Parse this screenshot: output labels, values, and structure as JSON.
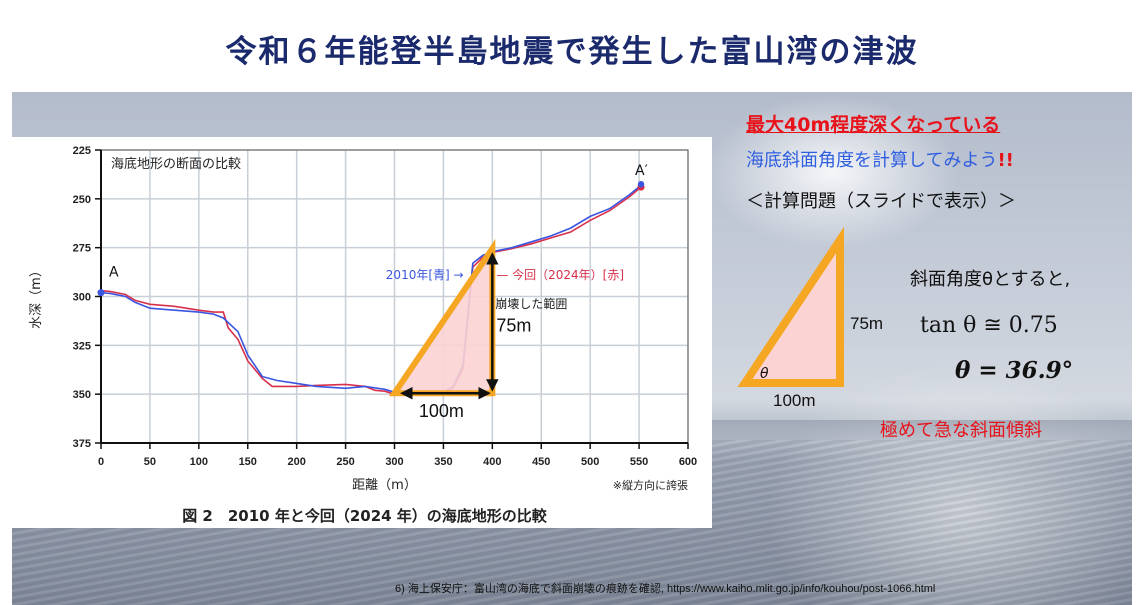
{
  "slide": {
    "title": "令和６年能登半島地震で発生した富山湾の津波",
    "citation": "6) 海上保安庁：富山湾の海底で斜面崩壊の痕跡を確認, https://www.kaiho.mlit.go.jp/info/kouhou/post-1066.html"
  },
  "figure": {
    "caption": "図 2　2010 年と今回（2024 年）の海底地形の比較",
    "inner_title": "海底地形の断面の比較",
    "exaggeration_note": "※縦方向に誇張",
    "point_a": "A",
    "point_a_prime": "A′",
    "legend_2010": "2010年[青] →",
    "legend_2024": "— 今回（2024年）[赤]",
    "collapse_label": "崩壊した範囲",
    "height_label": "75m",
    "width_label": "100m"
  },
  "right_panel": {
    "headline": "最大40m程度深くなっている",
    "prompt": "海底斜面角度を計算してみよう",
    "prompt_marks": "!!",
    "calc_problem": "＜計算問題（スライドで表示）＞",
    "slope_intro": "斜面角度θとすると,",
    "tan_equation": "tan θ ≅ 0.75",
    "theta_result": "θ = 36.9°",
    "conclusion": "極めて急な斜面傾斜",
    "triangle_height": "75m",
    "triangle_base": "100m",
    "triangle_angle": "θ"
  },
  "colors": {
    "title": "#1a2a6c",
    "series_2010": "#3a55e0",
    "series_2024": "#d8304a",
    "triangle_stroke": "#f5a623",
    "triangle_fill": "#fbd3d3",
    "highlight_red": "#e8121a",
    "prompt_blue": "#2f5fe0"
  },
  "chart_data": {
    "type": "line",
    "title": "海底地形の断面の比較",
    "xlabel": "距離（m）",
    "ylabel": "水深（m）",
    "xlim": [
      0,
      600
    ],
    "ylim": [
      375,
      225
    ],
    "x_ticks": [
      0,
      50,
      100,
      150,
      200,
      250,
      300,
      350,
      400,
      450,
      500,
      550,
      600
    ],
    "y_ticks": [
      225,
      250,
      275,
      300,
      325,
      350,
      375
    ],
    "grid": true,
    "y_inverted": true,
    "series": [
      {
        "name": "2010年[青]",
        "x": [
          0,
          10,
          25,
          35,
          50,
          75,
          100,
          115,
          125,
          140,
          150,
          165,
          180,
          200,
          220,
          250,
          270,
          290,
          300,
          330,
          350,
          360,
          370,
          380,
          390,
          400,
          420,
          440,
          460,
          480,
          500,
          520,
          540,
          552
        ],
        "y": [
          298,
          298.5,
          300,
          303,
          306,
          307,
          308,
          309,
          311,
          318,
          330,
          341,
          343,
          344.5,
          346,
          347,
          346,
          347.5,
          349,
          350,
          349,
          346,
          335,
          283,
          279,
          277,
          275,
          272,
          269,
          265,
          259,
          255,
          248,
          243
        ]
      },
      {
        "name": "今回（2024年）[赤]",
        "x": [
          0,
          10,
          25,
          35,
          50,
          75,
          100,
          115,
          125,
          130,
          140,
          150,
          165,
          175,
          200,
          220,
          250,
          270,
          280,
          290,
          300,
          330,
          350,
          360,
          370,
          380,
          390,
          400,
          420,
          440,
          460,
          480,
          500,
          520,
          540,
          552
        ],
        "y": [
          297,
          297.5,
          299,
          302,
          304,
          305,
          307,
          308,
          308,
          316,
          322,
          333,
          342,
          346,
          346,
          345.5,
          345,
          346,
          348,
          348.5,
          350,
          350,
          349,
          347,
          337,
          285,
          280,
          277.5,
          275.5,
          273,
          270,
          267,
          261,
          256,
          249,
          244
        ]
      }
    ],
    "annotations": [
      {
        "text": "A",
        "x": 0,
        "y": 298
      },
      {
        "text": "A′",
        "x": 552,
        "y": 243
      },
      {
        "text": "崩壊した範囲",
        "type": "right triangle",
        "base_m": 100,
        "height_m": 75,
        "from": [
          300,
          349
        ],
        "to": [
          400,
          275
        ]
      }
    ],
    "caption": "図 2　2010 年と今回（2024 年）の海底地形の比較",
    "note": "※縦方向に誇張"
  }
}
